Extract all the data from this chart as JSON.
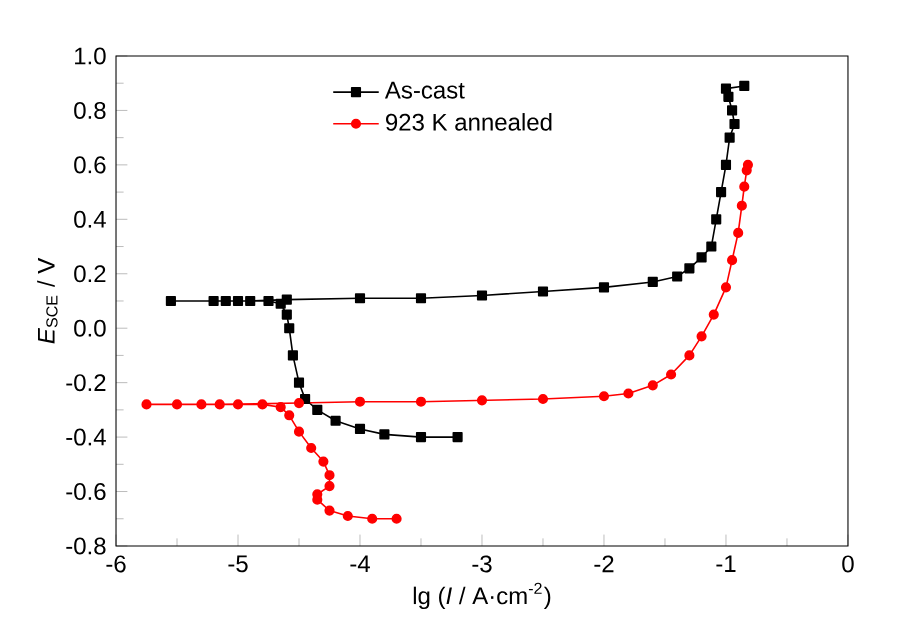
{
  "chart_data": {
    "type": "line",
    "xlabel": "lg (*I* / A·cm$^{-2}$)",
    "ylabel": "*E*$_{SCE}$ / V",
    "xlim": [
      -6,
      0
    ],
    "xticks": [
      -6,
      -5,
      -4,
      -3,
      -2,
      -1,
      0
    ],
    "ylim": [
      -0.8,
      1.0
    ],
    "yticks": [
      -0.8,
      -0.6,
      -0.4,
      -0.2,
      {
        "value": 0,
        "label": "0.0"
      },
      0.2,
      0.4,
      0.6,
      0.8,
      {
        "value": 1.0,
        "label": "1.0"
      }
    ],
    "legend": "top",
    "series": [
      {
        "name": "As-cast",
        "color": "#000000",
        "marker": "square",
        "x": [
          -3.2,
          -3.5,
          -3.8,
          -4.0,
          -4.2,
          -4.35,
          -4.45,
          -4.5,
          -4.55,
          -4.58,
          -4.6,
          -4.65,
          -4.75,
          -5.0,
          -5.2,
          -5.55,
          -5.1,
          -4.9,
          -4.6,
          -4.0,
          -3.5,
          -3.0,
          -2.5,
          -2.0,
          -1.6,
          -1.4,
          -1.3,
          -1.2,
          -1.12,
          -1.08,
          -1.04,
          -1.0,
          -0.97,
          -0.93,
          -0.95,
          -0.98,
          -1.0,
          -0.85
        ],
        "values": [
          -0.4,
          -0.4,
          -0.39,
          -0.37,
          -0.34,
          -0.3,
          -0.26,
          -0.2,
          -0.1,
          0.0,
          0.05,
          0.09,
          0.1,
          0.1,
          0.1,
          0.1,
          0.1,
          0.1,
          0.105,
          0.11,
          0.11,
          0.12,
          0.135,
          0.15,
          0.17,
          0.19,
          0.22,
          0.26,
          0.3,
          0.4,
          0.5,
          0.6,
          0.7,
          0.75,
          0.8,
          0.85,
          0.88,
          0.89
        ]
      },
      {
        "name": "923 K annealed",
        "color": "#ff0000",
        "marker": "circle",
        "x": [
          -3.7,
          -3.9,
          -4.1,
          -4.25,
          -4.35,
          -4.35,
          -4.25,
          -4.25,
          -4.3,
          -4.4,
          -4.5,
          -4.58,
          -4.65,
          -4.8,
          -5.0,
          -5.3,
          -5.75,
          -5.5,
          -5.15,
          -4.5,
          -4.0,
          -3.5,
          -3.0,
          -2.5,
          -2.0,
          -1.8,
          -1.6,
          -1.45,
          -1.3,
          -1.2,
          -1.1,
          -1.0,
          -0.95,
          -0.9,
          -0.87,
          -0.85,
          -0.83,
          -0.82
        ],
        "values": [
          -0.7,
          -0.7,
          -0.69,
          -0.67,
          -0.63,
          -0.61,
          -0.58,
          -0.54,
          -0.49,
          -0.44,
          -0.38,
          -0.32,
          -0.29,
          -0.28,
          -0.28,
          -0.28,
          -0.28,
          -0.28,
          -0.28,
          -0.275,
          -0.27,
          -0.27,
          -0.265,
          -0.26,
          -0.25,
          -0.24,
          -0.21,
          -0.17,
          -0.1,
          -0.03,
          0.05,
          0.15,
          0.25,
          0.35,
          0.45,
          0.52,
          0.58,
          0.6
        ]
      }
    ]
  }
}
